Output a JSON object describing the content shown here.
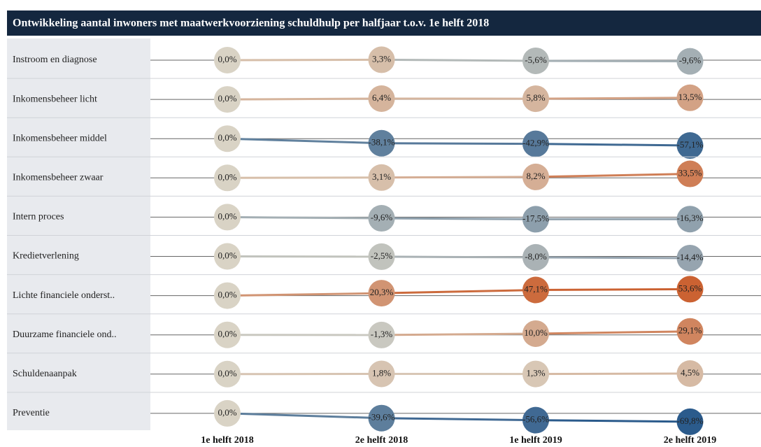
{
  "chart_data": {
    "type": "dot-line",
    "title": "Ontwikkeling aantal inwoners met maatwerkvoorziening schuldhulp per halfjaar t.o.v. 1e helft 2018",
    "categories": [
      "1e helft 2018",
      "2e helft 2018",
      "1e helft 2019",
      "2e helft 2019"
    ],
    "colors": {
      "negative": "#2b5b8c",
      "neutral": "#d9d3c5",
      "positive": "#c94f19"
    },
    "series": [
      {
        "name": "Instroom en diagnose",
        "values": [
          0.0,
          3.3,
          -5.6,
          -9.6
        ],
        "value_labels": [
          "0,0%",
          "3,3%",
          "-5,6%",
          "-9,6%"
        ]
      },
      {
        "name": "Inkomensbeheer licht",
        "values": [
          0.0,
          6.4,
          5.8,
          13.5
        ],
        "value_labels": [
          "0,0%",
          "6,4%",
          "5,8%",
          "13,5%"
        ]
      },
      {
        "name": "Inkomensbeheer middel",
        "values": [
          0.0,
          -38.1,
          -42.9,
          -57.1
        ],
        "value_labels": [
          "0,0%",
          "-38,1%",
          "-42,9%",
          "-57,1%"
        ]
      },
      {
        "name": "Inkomensbeheer zwaar",
        "values": [
          0.0,
          3.1,
          8.2,
          33.5
        ],
        "value_labels": [
          "0,0%",
          "3,1%",
          "8,2%",
          "33,5%"
        ]
      },
      {
        "name": "Intern proces",
        "values": [
          0.0,
          -9.6,
          -17.5,
          -16.3
        ],
        "value_labels": [
          "0,0%",
          "-9,6%",
          "-17,5%",
          "-16,3%"
        ]
      },
      {
        "name": "Kredietverlening",
        "values": [
          0.0,
          -2.5,
          -8.0,
          -14.4
        ],
        "value_labels": [
          "0,0%",
          "-2,5%",
          "-8,0%",
          "-14,4%"
        ]
      },
      {
        "name": "Lichte financiele onderst..",
        "values": [
          0.0,
          20.3,
          47.1,
          53.6
        ],
        "value_labels": [
          "0,0%",
          "20,3%",
          "47,1%",
          "53,6%"
        ]
      },
      {
        "name": "Duurzame financiele ond..",
        "values": [
          0.0,
          -1.3,
          10.0,
          29.1
        ],
        "value_labels": [
          "0,0%",
          "-1,3%",
          "10,0%",
          "29,1%"
        ]
      },
      {
        "name": "Schuldenaanpak",
        "values": [
          0.0,
          1.8,
          1.3,
          4.5
        ],
        "value_labels": [
          "0,0%",
          "1,8%",
          "1,3%",
          "4,5%"
        ]
      },
      {
        "name": "Preventie",
        "values": [
          0.0,
          -39.6,
          -56.6,
          -69.8
        ],
        "value_labels": [
          "0,0%",
          "-39,6%",
          "-56,6%",
          "-69,8%"
        ]
      }
    ]
  }
}
